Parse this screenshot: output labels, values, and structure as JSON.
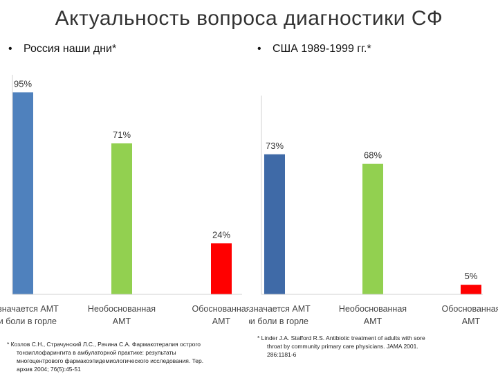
{
  "title": "Актуальность  вопроса диагностики СФ",
  "left": {
    "bullet_marker": "•",
    "bullet_text": "Россия наши дни*",
    "footnote_lines": [
      "* Козлов С.Н., Страчунский Л.С., Рачина С.А. Фармакотерапия острого",
      "тонзиллофарингита в амбулаторной практике: результаты",
      "многоцентрового фармакоэпидемиологического исследования. Тер.",
      "архив 2004; 76(5):45-51"
    ]
  },
  "right": {
    "bullet_marker": "•",
    "bullet_text": "США   1989-1999 гг.*",
    "footnote_lines": [
      "* Linder J.A. Stafford R.S. Antibiotic  treatment of adults with sore",
      "throat by community primary care physicians. JAMA 2001.",
      "286:1181-6"
    ]
  },
  "chart_data": [
    {
      "type": "bar",
      "categories": [
        [
          "Назначается АМТ",
          "при боли в горле"
        ],
        [
          "Необоснованная",
          "АМТ"
        ],
        [
          "Обоснованная",
          "АМТ"
        ]
      ],
      "values": [
        95,
        71,
        24
      ],
      "value_labels": [
        "95%",
        "71%",
        "24%"
      ],
      "colors": [
        "#4f81bd",
        "#92d050",
        "#ff0000"
      ],
      "ylim": [
        0,
        100
      ],
      "grid": false,
      "legend": "none"
    },
    {
      "type": "bar",
      "categories": [
        [
          "Назначается АМТ",
          "при боли в горле"
        ],
        [
          "Необоснованная",
          "АМТ"
        ],
        [
          "Обоснованная",
          "АМТ"
        ]
      ],
      "values": [
        73,
        68,
        5
      ],
      "value_labels": [
        "73%",
        "68%",
        "5%"
      ],
      "colors": [
        "#3f6aa7",
        "#92d050",
        "#ff0000"
      ],
      "ylim": [
        0,
        100
      ],
      "grid": false,
      "legend": "none"
    }
  ]
}
